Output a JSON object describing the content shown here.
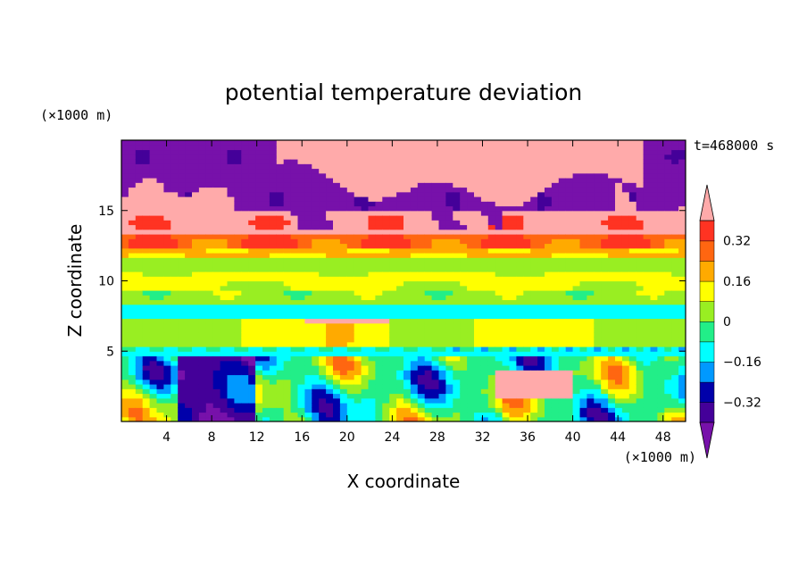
{
  "chart_data": {
    "type": "heatmap",
    "title": "potential temperature deviation",
    "xlabel": "X coordinate",
    "ylabel": "Z coordinate",
    "x_unit": "(×1000 m)",
    "y_unit": "(×1000 m)",
    "time_label": "t=468000 s",
    "xlim": [
      0,
      50
    ],
    "ylim": [
      0,
      20
    ],
    "x_ticks": [
      4,
      8,
      12,
      16,
      20,
      24,
      28,
      32,
      36,
      40,
      44,
      48
    ],
    "y_ticks": [
      5,
      10,
      15
    ],
    "colorbar": {
      "levels": [
        -0.4,
        -0.32,
        -0.24,
        -0.16,
        -0.08,
        0,
        0.08,
        0.16,
        0.24,
        0.32,
        0.4
      ],
      "tick_values": [
        0.32,
        0.16,
        0,
        -0.16,
        -0.32
      ],
      "tick_labels": [
        "0.32",
        "0.16",
        "0",
        "−0.16",
        "−0.32"
      ],
      "colors_high_to_low": [
        "#ffaaaa",
        "#ff3322",
        "#ff6611",
        "#ffaa00",
        "#ffff00",
        "#99ee22",
        "#22ee88",
        "#00ffff",
        "#0099ff",
        "#0000aa",
        "#440099",
        "#7711aa"
      ],
      "extend": "both"
    },
    "bands": [
      {
        "z": [
          0,
          4.8
        ],
        "value": -0.05
      },
      {
        "z": [
          4.8,
          5.2
        ],
        "value": -0.1
      },
      {
        "z": [
          5.2,
          7.5
        ],
        "value": 0.1
      },
      {
        "z": [
          7.5,
          8.3
        ],
        "value": -0.12
      },
      {
        "z": [
          8.3,
          9.3
        ],
        "value": 0.05
      },
      {
        "z": [
          9.3,
          10.7
        ],
        "value": 0.1
      },
      {
        "z": [
          10.7,
          11.7
        ],
        "value": 0.05
      },
      {
        "z": [
          11.7,
          12.4
        ],
        "value": 0.2
      },
      {
        "z": [
          12.4,
          13.4
        ],
        "value": 0.3
      },
      {
        "z": [
          13.4,
          15
        ],
        "value": 0.45
      },
      {
        "z": [
          15,
          20
        ],
        "value": -0.45
      }
    ]
  }
}
